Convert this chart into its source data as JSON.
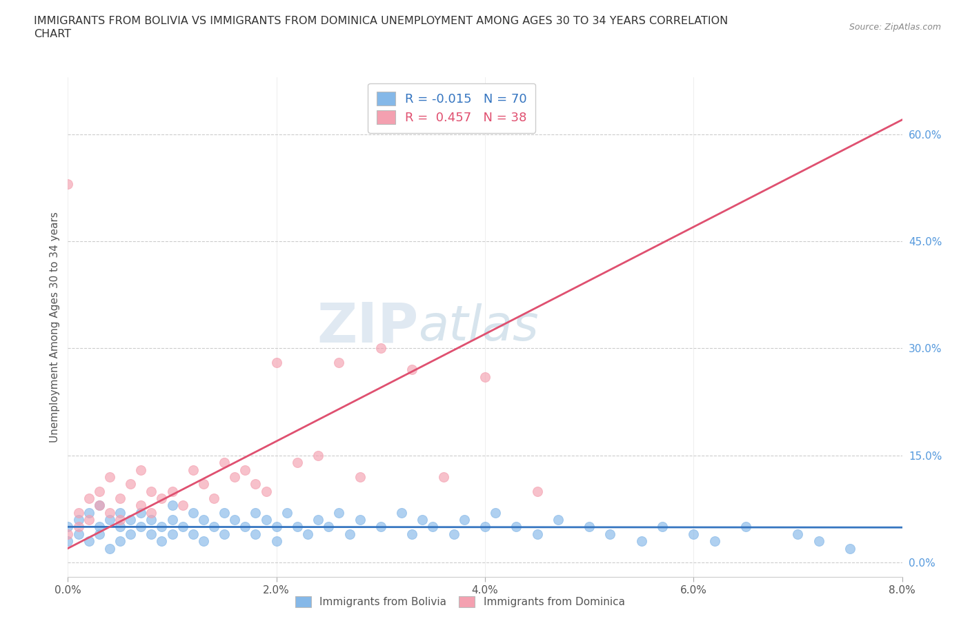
{
  "title": "IMMIGRANTS FROM BOLIVIA VS IMMIGRANTS FROM DOMINICA UNEMPLOYMENT AMONG AGES 30 TO 34 YEARS CORRELATION\nCHART",
  "source": "Source: ZipAtlas.com",
  "ylabel": "Unemployment Among Ages 30 to 34 years",
  "xlim": [
    0.0,
    0.08
  ],
  "ylim": [
    -0.02,
    0.68
  ],
  "xticks": [
    0.0,
    0.02,
    0.04,
    0.06,
    0.08
  ],
  "xticklabels": [
    "0.0%",
    "2.0%",
    "4.0%",
    "6.0%",
    "8.0%"
  ],
  "yticks_right": [
    0.0,
    0.15,
    0.3,
    0.45,
    0.6
  ],
  "bolivia_color": "#85b8e8",
  "dominica_color": "#f4a0b0",
  "bolivia_line_color": "#3575c0",
  "dominica_line_color": "#e05070",
  "R_bolivia": -0.015,
  "N_bolivia": 70,
  "R_dominica": 0.457,
  "N_dominica": 38,
  "bolivia_x": [
    0.0,
    0.0,
    0.001,
    0.001,
    0.002,
    0.002,
    0.003,
    0.003,
    0.003,
    0.004,
    0.004,
    0.005,
    0.005,
    0.005,
    0.006,
    0.006,
    0.007,
    0.007,
    0.008,
    0.008,
    0.009,
    0.009,
    0.01,
    0.01,
    0.01,
    0.011,
    0.012,
    0.012,
    0.013,
    0.013,
    0.014,
    0.015,
    0.015,
    0.016,
    0.017,
    0.018,
    0.018,
    0.019,
    0.02,
    0.02,
    0.021,
    0.022,
    0.023,
    0.024,
    0.025,
    0.026,
    0.027,
    0.028,
    0.03,
    0.032,
    0.033,
    0.034,
    0.035,
    0.037,
    0.038,
    0.04,
    0.041,
    0.043,
    0.045,
    0.047,
    0.05,
    0.052,
    0.055,
    0.057,
    0.06,
    0.062,
    0.065,
    0.07,
    0.072,
    0.075
  ],
  "bolivia_y": [
    0.03,
    0.05,
    0.04,
    0.06,
    0.03,
    0.07,
    0.05,
    0.08,
    0.04,
    0.06,
    0.02,
    0.05,
    0.07,
    0.03,
    0.06,
    0.04,
    0.05,
    0.07,
    0.04,
    0.06,
    0.05,
    0.03,
    0.06,
    0.04,
    0.08,
    0.05,
    0.07,
    0.04,
    0.06,
    0.03,
    0.05,
    0.07,
    0.04,
    0.06,
    0.05,
    0.07,
    0.04,
    0.06,
    0.05,
    0.03,
    0.07,
    0.05,
    0.04,
    0.06,
    0.05,
    0.07,
    0.04,
    0.06,
    0.05,
    0.07,
    0.04,
    0.06,
    0.05,
    0.04,
    0.06,
    0.05,
    0.07,
    0.05,
    0.04,
    0.06,
    0.05,
    0.04,
    0.03,
    0.05,
    0.04,
    0.03,
    0.05,
    0.04,
    0.03,
    0.02
  ],
  "dominica_x": [
    0.0,
    0.0,
    0.001,
    0.001,
    0.002,
    0.002,
    0.003,
    0.003,
    0.004,
    0.004,
    0.005,
    0.005,
    0.006,
    0.007,
    0.007,
    0.008,
    0.008,
    0.009,
    0.01,
    0.011,
    0.012,
    0.013,
    0.014,
    0.015,
    0.016,
    0.017,
    0.018,
    0.019,
    0.02,
    0.022,
    0.024,
    0.026,
    0.028,
    0.03,
    0.033,
    0.036,
    0.04,
    0.045
  ],
  "dominica_y": [
    0.04,
    0.53,
    0.05,
    0.07,
    0.06,
    0.09,
    0.08,
    0.1,
    0.07,
    0.12,
    0.09,
    0.06,
    0.11,
    0.08,
    0.13,
    0.1,
    0.07,
    0.09,
    0.1,
    0.08,
    0.13,
    0.11,
    0.09,
    0.14,
    0.12,
    0.13,
    0.11,
    0.1,
    0.28,
    0.14,
    0.15,
    0.28,
    0.12,
    0.3,
    0.27,
    0.12,
    0.26,
    0.1
  ],
  "watermark_zip": "ZIP",
  "watermark_atlas": "atlas",
  "legend_box_color_bolivia": "#85b8e8",
  "legend_box_color_dominica": "#f4a0b0",
  "legend_text_color_bolivia": "#3575c0",
  "legend_text_color_dominica": "#e05070"
}
